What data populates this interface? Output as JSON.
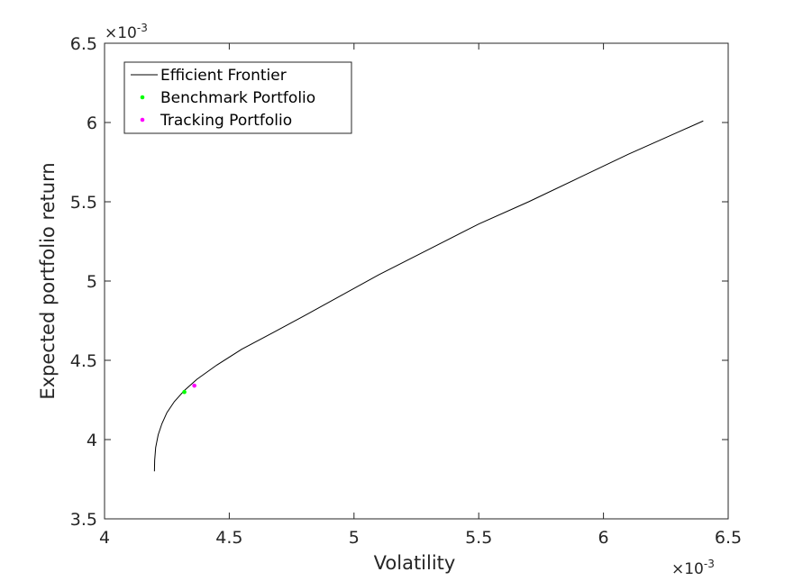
{
  "chart_data": {
    "type": "line",
    "xlabel": "Volatility",
    "ylabel": "Expected portfolio return",
    "x_exponent_label": "×10",
    "x_exponent_power": "-3",
    "y_exponent_label": "×10",
    "y_exponent_power": "-3",
    "xlim": [
      0.004,
      0.0065
    ],
    "ylim": [
      0.0035,
      0.0065
    ],
    "x_ticks": [
      0.004,
      0.0045,
      0.005,
      0.0055,
      0.006,
      0.0065
    ],
    "x_tick_labels": [
      "4",
      "4.5",
      "5",
      "5.5",
      "6",
      "6.5"
    ],
    "y_ticks": [
      0.0035,
      0.004,
      0.0045,
      0.005,
      0.0055,
      0.006,
      0.0065
    ],
    "y_tick_labels": [
      "3.5",
      "4",
      "4.5",
      "5",
      "5.5",
      "6",
      "6.5"
    ],
    "grid": false,
    "legend_position": "top-left",
    "series": [
      {
        "name": "Efficient Frontier",
        "kind": "line",
        "color": "#000000",
        "x": [
          0.0042,
          0.004201,
          0.004205,
          0.004215,
          0.00423,
          0.00425,
          0.00428,
          0.00432,
          0.00437,
          0.00445,
          0.00455,
          0.00467,
          0.0048,
          0.00495,
          0.0051,
          0.0053,
          0.0055,
          0.0057,
          0.0059,
          0.0061,
          0.0063,
          0.0064
        ],
        "y": [
          0.0038,
          0.00387,
          0.00395,
          0.00403,
          0.0041,
          0.00417,
          0.00424,
          0.00431,
          0.00438,
          0.00447,
          0.00457,
          0.00467,
          0.00478,
          0.00491,
          0.00504,
          0.0052,
          0.00536,
          0.0055,
          0.00565,
          0.0058,
          0.00594,
          0.00601
        ]
      },
      {
        "name": "Benchmark Portfolio",
        "kind": "scatter",
        "color": "#00ff00",
        "x": [
          0.00432
        ],
        "y": [
          0.0043
        ]
      },
      {
        "name": "Tracking Portfolio",
        "kind": "scatter",
        "color": "#ff00ff",
        "x": [
          0.00436
        ],
        "y": [
          0.00434
        ]
      }
    ]
  }
}
